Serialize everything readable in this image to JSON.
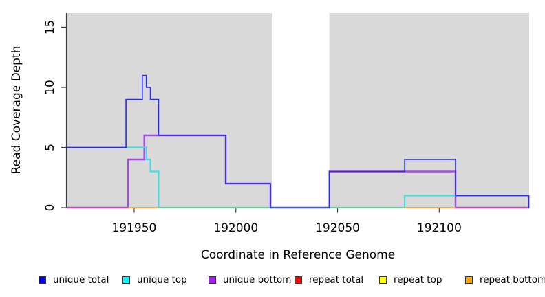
{
  "chart_data": {
    "type": "line",
    "subtype": "step-coverage",
    "title": "",
    "xlabel": "Coordinate in Reference Genome",
    "ylabel": "Read Coverage Depth",
    "xlim": [
      191916.7,
      192144.2
    ],
    "ylim": [
      0,
      16.17
    ],
    "x_ticks": [
      191950,
      192000,
      192050,
      192100
    ],
    "y_ticks": [
      0,
      5,
      10,
      15
    ],
    "grid": false,
    "panel_bg": "#d9d9d9",
    "gap_band": {
      "from": 192018,
      "to": 192046,
      "color": "#ffffff"
    },
    "axis_color": "#404040",
    "series": [
      {
        "name": "repeat total",
        "color": "#e02020",
        "width": 1.2,
        "points": [
          [
            191917,
            0
          ],
          [
            192144,
            0
          ]
        ]
      },
      {
        "name": "repeat top",
        "color": "#f5f500",
        "width": 1.2,
        "points": [
          [
            191917,
            0
          ],
          [
            192144,
            0
          ]
        ]
      },
      {
        "name": "repeat bottom",
        "color": "#ff9d33",
        "width": 1.2,
        "points": [
          [
            191917,
            0
          ],
          [
            192144,
            0
          ]
        ]
      },
      {
        "name": "unique bottom",
        "color": "#a648e8",
        "width": 2.4,
        "points": [
          [
            191917,
            0
          ],
          [
            191947,
            4
          ],
          [
            191955,
            6
          ],
          [
            191995,
            2
          ],
          [
            192017,
            0
          ],
          [
            192046,
            3
          ],
          [
            192108,
            0
          ],
          [
            192144,
            0
          ]
        ]
      },
      {
        "name": "unique top",
        "color": "#3fdfe4",
        "width": 2.2,
        "points": [
          [
            191917,
            5
          ],
          [
            191956,
            4
          ],
          [
            191958,
            3
          ],
          [
            191962,
            0
          ],
          [
            192083,
            1
          ],
          [
            192144,
            0
          ]
        ]
      },
      {
        "name": "unique total",
        "color": "#2a2af0",
        "width": 1.6,
        "points": [
          [
            191917,
            5
          ],
          [
            191946,
            9
          ],
          [
            191954,
            11
          ],
          [
            191956,
            10
          ],
          [
            191958,
            9
          ],
          [
            191962,
            6
          ],
          [
            191995,
            2
          ],
          [
            192017,
            0
          ],
          [
            192046,
            3
          ],
          [
            192083,
            4
          ],
          [
            192108,
            1
          ],
          [
            192144,
            0
          ]
        ]
      }
    ],
    "baseline_overlay": [
      {
        "from": 191917,
        "to": 191947,
        "color": "#d94f8e"
      },
      {
        "from": 191947,
        "to": 191962,
        "color": "#ff9d33"
      },
      {
        "from": 191962,
        "to": 192083,
        "color": "#7cc57c"
      },
      {
        "from": 192083,
        "to": 192108,
        "color": "#ff9d33"
      },
      {
        "from": 192108,
        "to": 192144,
        "color": "#d94f8e"
      }
    ]
  },
  "legend": {
    "items": [
      {
        "label": "unique total",
        "color": "#0000f0"
      },
      {
        "label": "unique top",
        "color": "#00ffff"
      },
      {
        "label": "unique bottom",
        "color": "#a020f0"
      },
      {
        "label": "repeat total",
        "color": "#ff0000"
      },
      {
        "label": "repeat top",
        "color": "#ffff00"
      },
      {
        "label": "repeat bottom",
        "color": "#ffa500"
      }
    ]
  }
}
